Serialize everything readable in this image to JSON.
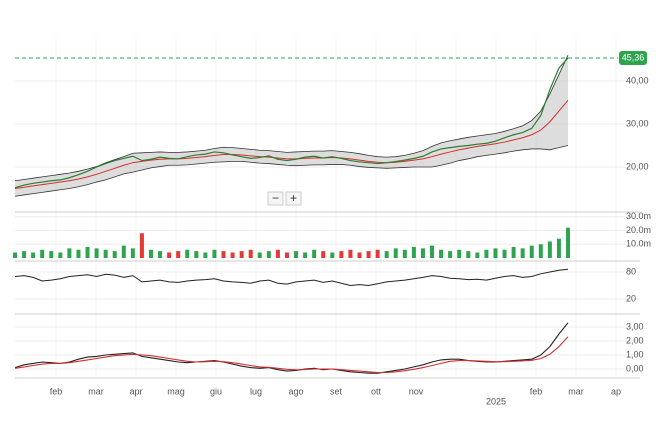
{
  "chart_data": {
    "type": "stock",
    "last_price": {
      "value": 45.36,
      "label": "45,36",
      "color": "#2ea44f"
    },
    "categories": [
      "feb",
      "mar",
      "apr",
      "mag",
      "giu",
      "lug",
      "ago",
      "set",
      "ott",
      "nov",
      null,
      "2025",
      "feb",
      "mar",
      "ap"
    ],
    "price": {
      "ylim": [
        10,
        50
      ],
      "yticks": [
        {
          "value": 20,
          "label": "20,00"
        },
        {
          "value": 30,
          "label": "30,00"
        },
        {
          "value": 40,
          "label": "40,00"
        }
      ],
      "bands": {
        "color": "#9e9e9e",
        "upper": [
          16.8,
          17.1,
          17.4,
          17.7,
          18.0,
          18.3,
          18.6,
          19.0,
          19.5,
          20.1,
          21.0,
          21.7,
          22.4,
          23.2,
          23.3,
          23.4,
          23.5,
          23.4,
          23.4,
          23.5,
          23.7,
          23.9,
          24.3,
          24.6,
          24.5,
          24.3,
          24.1,
          23.9,
          23.8,
          23.6,
          23.4,
          23.5,
          23.6,
          23.7,
          23.7,
          23.8,
          23.6,
          23.4,
          23.1,
          22.7,
          22.4,
          22.3,
          22.4,
          22.7,
          23.2,
          23.8,
          24.8,
          25.6,
          26.1,
          26.5,
          26.9,
          27.2,
          27.5,
          27.8,
          28.3,
          28.9,
          29.6,
          30.8,
          33.0,
          37.0,
          41.5,
          46.0
        ],
        "lower": [
          13.2,
          13.5,
          13.8,
          14.1,
          14.4,
          14.7,
          15.0,
          15.4,
          15.9,
          16.5,
          17.0,
          17.7,
          18.4,
          18.8,
          19.3,
          19.8,
          20.1,
          20.4,
          20.4,
          20.5,
          20.7,
          20.9,
          21.1,
          21.2,
          21.3,
          21.3,
          21.1,
          20.9,
          20.8,
          20.6,
          20.4,
          20.3,
          20.4,
          20.5,
          20.5,
          20.6,
          20.6,
          20.4,
          20.1,
          19.9,
          19.8,
          19.7,
          19.8,
          19.9,
          20.0,
          20.0,
          20.0,
          20.4,
          20.9,
          21.5,
          21.9,
          22.4,
          22.7,
          23.0,
          23.3,
          23.7,
          24.0,
          24.2,
          24.2,
          24.0,
          24.5,
          25.0
        ]
      },
      "series": [
        {
          "color": "#d32f2f",
          "values": [
            15.0,
            15.3,
            15.6,
            15.9,
            16.2,
            16.5,
            16.8,
            17.2,
            17.7,
            18.3,
            19.0,
            19.7,
            20.4,
            21.0,
            21.3,
            21.6,
            21.8,
            21.9,
            21.9,
            22.0,
            22.2,
            22.4,
            22.7,
            22.9,
            22.9,
            22.8,
            22.6,
            22.4,
            22.3,
            22.1,
            21.9,
            21.9,
            22.0,
            22.1,
            22.1,
            22.2,
            22.1,
            21.9,
            21.6,
            21.3,
            21.1,
            21.0,
            21.1,
            21.3,
            21.6,
            21.9,
            22.4,
            23.0,
            23.5,
            24.0,
            24.4,
            24.8,
            25.1,
            25.4,
            25.8,
            26.3,
            26.8,
            27.5,
            28.6,
            30.5,
            33.0,
            35.5
          ]
        },
        {
          "color": "#2e7d32",
          "values": [
            15.2,
            15.8,
            16.2,
            16.5,
            16.8,
            17.0,
            17.5,
            18.2,
            19.0,
            20.0,
            20.8,
            21.5,
            22.0,
            22.5,
            21.5,
            21.8,
            22.3,
            22.0,
            21.9,
            22.4,
            22.8,
            23.0,
            23.5,
            23.3,
            22.8,
            22.4,
            22.0,
            22.2,
            22.6,
            21.8,
            21.5,
            21.8,
            22.3,
            22.5,
            22.1,
            22.4,
            22.0,
            21.5,
            21.2,
            21.0,
            20.8,
            21.0,
            21.3,
            21.6,
            22.0,
            22.5,
            23.5,
            24.2,
            24.5,
            24.8,
            25.0,
            25.3,
            25.5,
            26.0,
            26.8,
            27.5,
            28.0,
            29.0,
            32.0,
            38.0,
            43.0,
            45.36
          ]
        }
      ]
    },
    "volume": {
      "ylim": [
        0,
        32
      ],
      "up_color": "#2ea44f",
      "down_color": "#e53935",
      "yticks": [
        {
          "value": 10,
          "label": "10.0m"
        },
        {
          "value": 20,
          "label": "20.0m"
        },
        {
          "value": 30,
          "label": "30.0m"
        }
      ],
      "values": [
        4,
        5,
        4,
        6,
        5,
        4,
        7,
        6,
        8,
        7,
        6,
        5,
        9,
        7,
        18,
        6,
        5,
        4,
        5,
        6,
        5,
        4,
        6,
        5,
        4,
        5,
        6,
        4,
        5,
        6,
        4,
        5,
        4,
        6,
        5,
        4,
        5,
        6,
        4,
        5,
        6,
        5,
        7,
        6,
        8,
        7,
        9,
        6,
        5,
        6,
        5,
        4,
        6,
        7,
        6,
        8,
        7,
        9,
        10,
        12,
        14,
        22
      ]
    },
    "rsi": {
      "ylim": [
        0,
        100
      ],
      "color": "#222",
      "yticks": [
        20,
        80
      ],
      "values": [
        70,
        72,
        68,
        60,
        62,
        65,
        70,
        72,
        74,
        70,
        75,
        73,
        68,
        72,
        58,
        60,
        62,
        58,
        57,
        60,
        62,
        63,
        65,
        60,
        58,
        57,
        55,
        60,
        62,
        55,
        53,
        58,
        60,
        62,
        57,
        60,
        55,
        50,
        52,
        50,
        54,
        58,
        60,
        62,
        65,
        68,
        72,
        70,
        66,
        65,
        63,
        64,
        62,
        66,
        70,
        72,
        68,
        70,
        76,
        80,
        84,
        86
      ]
    },
    "macd": {
      "ylim": [
        -0.5,
        3.5
      ],
      "yticks": [
        {
          "value": 0,
          "label": "0,00"
        },
        {
          "value": 1,
          "label": "1,00"
        },
        {
          "value": 2,
          "label": "2,00"
        },
        {
          "value": 3,
          "label": "3,00"
        }
      ],
      "series": [
        {
          "color": "#222",
          "values": [
            0.1,
            0.3,
            0.4,
            0.5,
            0.45,
            0.4,
            0.5,
            0.7,
            0.85,
            0.9,
            1.0,
            1.05,
            1.1,
            1.15,
            0.9,
            0.8,
            0.7,
            0.6,
            0.5,
            0.45,
            0.5,
            0.55,
            0.6,
            0.5,
            0.35,
            0.2,
            0.1,
            0.05,
            0.1,
            -0.05,
            -0.15,
            -0.1,
            0.0,
            0.05,
            -0.05,
            0.0,
            -0.1,
            -0.2,
            -0.25,
            -0.3,
            -0.3,
            -0.2,
            -0.1,
            0.0,
            0.15,
            0.3,
            0.5,
            0.65,
            0.7,
            0.7,
            0.6,
            0.55,
            0.5,
            0.5,
            0.55,
            0.6,
            0.65,
            0.7,
            1.0,
            1.6,
            2.5,
            3.3
          ]
        },
        {
          "color": "#d32f2f",
          "values": [
            0.05,
            0.15,
            0.25,
            0.35,
            0.4,
            0.4,
            0.45,
            0.55,
            0.65,
            0.75,
            0.85,
            0.95,
            1.0,
            1.05,
            1.0,
            0.95,
            0.85,
            0.75,
            0.65,
            0.55,
            0.5,
            0.52,
            0.55,
            0.52,
            0.45,
            0.35,
            0.25,
            0.15,
            0.12,
            0.05,
            -0.02,
            -0.06,
            -0.04,
            0.0,
            0.0,
            0.0,
            -0.05,
            -0.1,
            -0.15,
            -0.2,
            -0.25,
            -0.25,
            -0.2,
            -0.12,
            -0.02,
            0.1,
            0.25,
            0.4,
            0.55,
            0.6,
            0.6,
            0.58,
            0.55,
            0.52,
            0.52,
            0.55,
            0.58,
            0.62,
            0.75,
            1.05,
            1.6,
            2.3
          ]
        }
      ]
    },
    "zoom": [
      "−",
      "+"
    ]
  }
}
